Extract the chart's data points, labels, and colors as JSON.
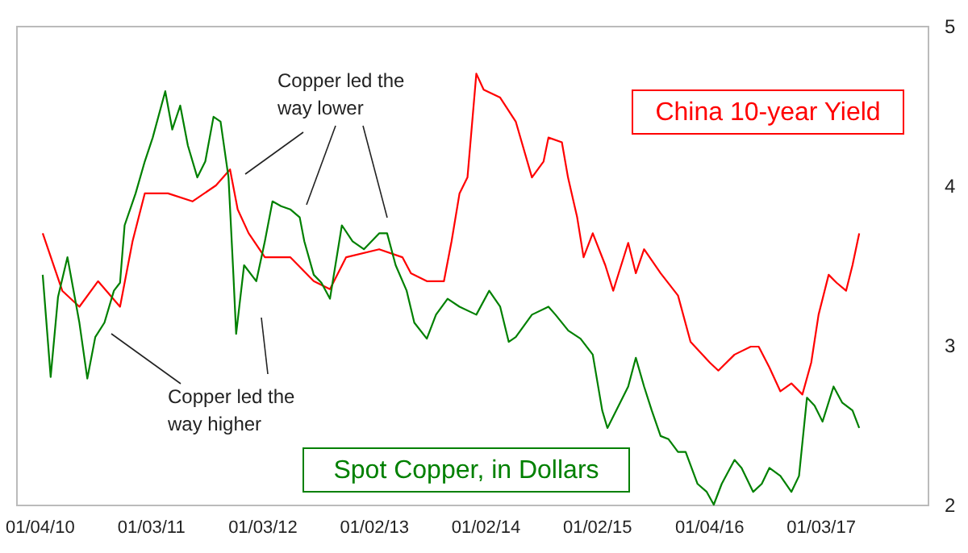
{
  "chart_data": {
    "type": "line",
    "xlim": [
      "2009-10-20",
      "2017-12-20"
    ],
    "xticks": [
      {
        "value": "2010-01-04",
        "label": "01/04/10"
      },
      {
        "value": "2011-01-03",
        "label": "01/03/11"
      },
      {
        "value": "2012-01-03",
        "label": "01/03/12"
      },
      {
        "value": "2013-01-02",
        "label": "01/02/13"
      },
      {
        "value": "2014-01-02",
        "label": "01/02/14"
      },
      {
        "value": "2015-01-02",
        "label": "01/02/15"
      },
      {
        "value": "2016-01-04",
        "label": "01/04/16"
      },
      {
        "value": "2017-01-03",
        "label": "01/03/17"
      }
    ],
    "ylim": [
      2,
      5
    ],
    "yticks": [
      2,
      3,
      4,
      5
    ],
    "grid": false,
    "line_style": "solid",
    "annotations": [
      "Copper led the\nway lower",
      "Copper led the\nway higher"
    ],
    "series": [
      {
        "name": "China 10-year Yield",
        "color": "#ff0000",
        "x": [
          "2010-01-15",
          "2010-03-20",
          "2010-05-15",
          "2010-07-15",
          "2010-09-25",
          "2010-11-05",
          "2010-12-15",
          "2011-03-01",
          "2011-05-20",
          "2011-08-05",
          "2011-09-20",
          "2011-10-15",
          "2011-11-20",
          "2012-01-12",
          "2012-04-04",
          "2012-06-20",
          "2012-08-12",
          "2012-10-04",
          "2013-01-20",
          "2013-04-06",
          "2013-05-04",
          "2013-06-25",
          "2013-08-20",
          "2013-09-14",
          "2013-10-10",
          "2013-11-05",
          "2013-12-04",
          "2013-12-28",
          "2014-02-20",
          "2014-04-12",
          "2014-06-04",
          "2014-07-12",
          "2014-07-28",
          "2014-09-10",
          "2014-09-30",
          "2014-10-30",
          "2014-11-20",
          "2014-12-20",
          "2015-01-30",
          "2015-02-25",
          "2015-04-15",
          "2015-05-10",
          "2015-06-06",
          "2015-07-30",
          "2015-09-25",
          "2015-11-05",
          "2016-01-07",
          "2016-02-04",
          "2016-03-28",
          "2016-05-20",
          "2016-06-15",
          "2016-07-20",
          "2016-08-25",
          "2016-09-30",
          "2016-11-05",
          "2016-12-04",
          "2016-12-28",
          "2017-01-30",
          "2017-02-25",
          "2017-03-28",
          "2017-04-18",
          "2017-05-10"
        ],
        "values": [
          3.7,
          3.34,
          3.24,
          3.4,
          3.24,
          3.65,
          3.95,
          3.95,
          3.9,
          4.0,
          4.1,
          3.85,
          3.7,
          3.55,
          3.55,
          3.4,
          3.35,
          3.55,
          3.6,
          3.55,
          3.45,
          3.4,
          3.4,
          3.65,
          3.95,
          4.05,
          4.7,
          4.6,
          4.55,
          4.4,
          4.05,
          4.15,
          4.3,
          4.27,
          4.05,
          3.8,
          3.55,
          3.7,
          3.5,
          3.34,
          3.64,
          3.45,
          3.6,
          3.45,
          3.31,
          3.02,
          2.89,
          2.84,
          2.94,
          2.99,
          2.99,
          2.86,
          2.71,
          2.76,
          2.69,
          2.89,
          3.19,
          3.44,
          3.39,
          3.34,
          3.5,
          3.7
        ]
      },
      {
        "name": "Spot Copper, in Dollars",
        "color": "#008000",
        "x": [
          "2010-01-15",
          "2010-02-10",
          "2010-03-06",
          "2010-04-06",
          "2010-05-15",
          "2010-06-10",
          "2010-07-06",
          "2010-08-05",
          "2010-09-05",
          "2010-09-25",
          "2010-10-10",
          "2010-11-15",
          "2010-12-15",
          "2011-01-10",
          "2011-02-20",
          "2011-03-15",
          "2011-04-10",
          "2011-05-05",
          "2011-06-05",
          "2011-07-01",
          "2011-07-28",
          "2011-08-20",
          "2011-09-15",
          "2011-10-01",
          "2011-10-10",
          "2011-11-05",
          "2011-12-15",
          "2012-01-12",
          "2012-02-06",
          "2012-03-05",
          "2012-04-04",
          "2012-05-05",
          "2012-05-20",
          "2012-06-20",
          "2012-07-15",
          "2012-08-12",
          "2012-09-20",
          "2012-10-25",
          "2012-12-01",
          "2013-01-20",
          "2013-02-15",
          "2013-03-15",
          "2013-04-20",
          "2013-05-15",
          "2013-06-25",
          "2013-07-25",
          "2013-09-01",
          "2013-10-10",
          "2013-12-04",
          "2014-01-15",
          "2014-02-20",
          "2014-03-20",
          "2014-04-12",
          "2014-06-04",
          "2014-07-28",
          "2014-08-20",
          "2014-10-01",
          "2014-11-10",
          "2014-12-20",
          "2015-01-20",
          "2015-02-06",
          "2015-03-20",
          "2015-04-15",
          "2015-05-10",
          "2015-06-06",
          "2015-07-01",
          "2015-07-30",
          "2015-08-25",
          "2015-09-25",
          "2015-10-20",
          "2015-11-28",
          "2015-12-28",
          "2016-01-20",
          "2016-02-15",
          "2016-03-28",
          "2016-04-20",
          "2016-05-28",
          "2016-06-25",
          "2016-07-20",
          "2016-08-25",
          "2016-09-30",
          "2016-10-25",
          "2016-11-20",
          "2016-12-15",
          "2017-01-10",
          "2017-02-15",
          "2017-03-15",
          "2017-04-18",
          "2017-05-10"
        ],
        "values": [
          3.44,
          2.8,
          3.3,
          3.55,
          3.14,
          2.79,
          3.05,
          3.14,
          3.34,
          3.39,
          3.75,
          3.95,
          4.15,
          4.3,
          4.59,
          4.35,
          4.5,
          4.25,
          4.05,
          4.15,
          4.43,
          4.4,
          4.05,
          3.44,
          3.07,
          3.5,
          3.4,
          3.65,
          3.9,
          3.87,
          3.85,
          3.8,
          3.65,
          3.44,
          3.39,
          3.29,
          3.75,
          3.65,
          3.6,
          3.7,
          3.7,
          3.5,
          3.34,
          3.14,
          3.04,
          3.19,
          3.29,
          3.24,
          3.19,
          3.34,
          3.24,
          3.02,
          3.05,
          3.19,
          3.24,
          3.19,
          3.09,
          3.04,
          2.94,
          2.59,
          2.48,
          2.64,
          2.74,
          2.92,
          2.74,
          2.59,
          2.43,
          2.41,
          2.33,
          2.33,
          2.13,
          2.08,
          2.0,
          2.13,
          2.28,
          2.23,
          2.08,
          2.13,
          2.23,
          2.18,
          2.08,
          2.18,
          2.67,
          2.62,
          2.52,
          2.74,
          2.64,
          2.59,
          2.48
        ]
      }
    ]
  }
}
